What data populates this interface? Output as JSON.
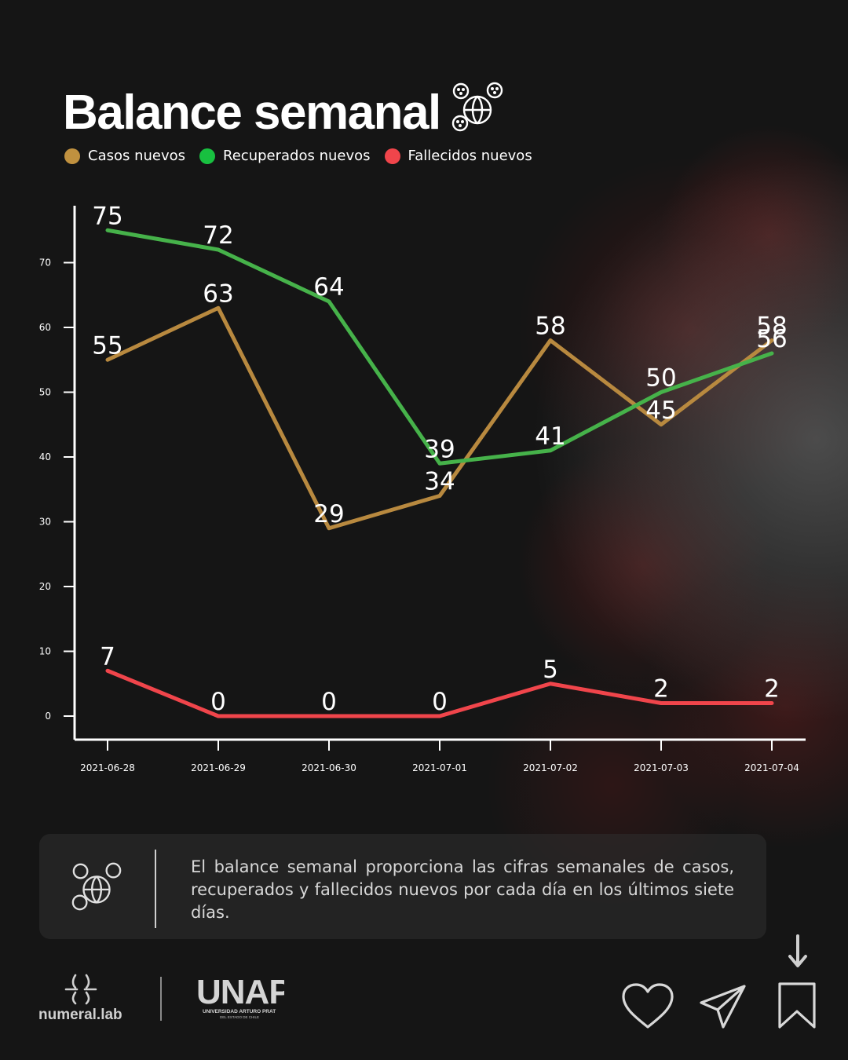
{
  "header": {
    "title": "Balance semanal"
  },
  "legend": [
    {
      "label": "Casos nuevos",
      "color": "#b8893f"
    },
    {
      "label": "Recuperados nuevos",
      "color": "#1fbb3e"
    },
    {
      "label": "Fallecidos nuevos",
      "color": "#f0454b"
    }
  ],
  "chart_data": {
    "type": "line",
    "title": "",
    "xlabel": "",
    "ylabel": "",
    "categories": [
      "2021-06-28",
      "2021-06-29",
      "2021-06-30",
      "2021-07-01",
      "2021-07-02",
      "2021-07-03",
      "2021-07-04"
    ],
    "series": [
      {
        "name": "Casos nuevos",
        "values": [
          55,
          63,
          29,
          34,
          58,
          45,
          58
        ],
        "color": "#b8893f"
      },
      {
        "name": "Recuperados nuevos",
        "values": [
          75,
          72,
          64,
          39,
          41,
          50,
          56
        ],
        "color": "#46b24a"
      },
      {
        "name": "Fallecidos nuevos",
        "values": [
          7,
          0,
          0,
          0,
          5,
          2,
          2
        ],
        "color": "#f0454b"
      }
    ],
    "yticks": [
      0,
      10,
      20,
      30,
      40,
      50,
      60,
      70
    ],
    "ylim": [
      -3.6,
      80.5
    ],
    "grid": false,
    "legend_position": "top-left",
    "data_labels": true
  },
  "info": {
    "text": "El balance semanal proporciona las cifras semanales de casos, recuperados y fallecidos nuevos por cada día en los últimos siete días.",
    "icon": "covid-globe-icon"
  },
  "footer": {
    "brand": "numeral.lab",
    "partner": "UNAP",
    "partner_subtitle": "UNIVERSIDAD ARTURO PRAT",
    "partner_subtitle2": "DEL ESTADO DE CHILE"
  },
  "actions": [
    "heart-icon",
    "send-icon",
    "bookmark-icon",
    "arrow-down-icon"
  ]
}
